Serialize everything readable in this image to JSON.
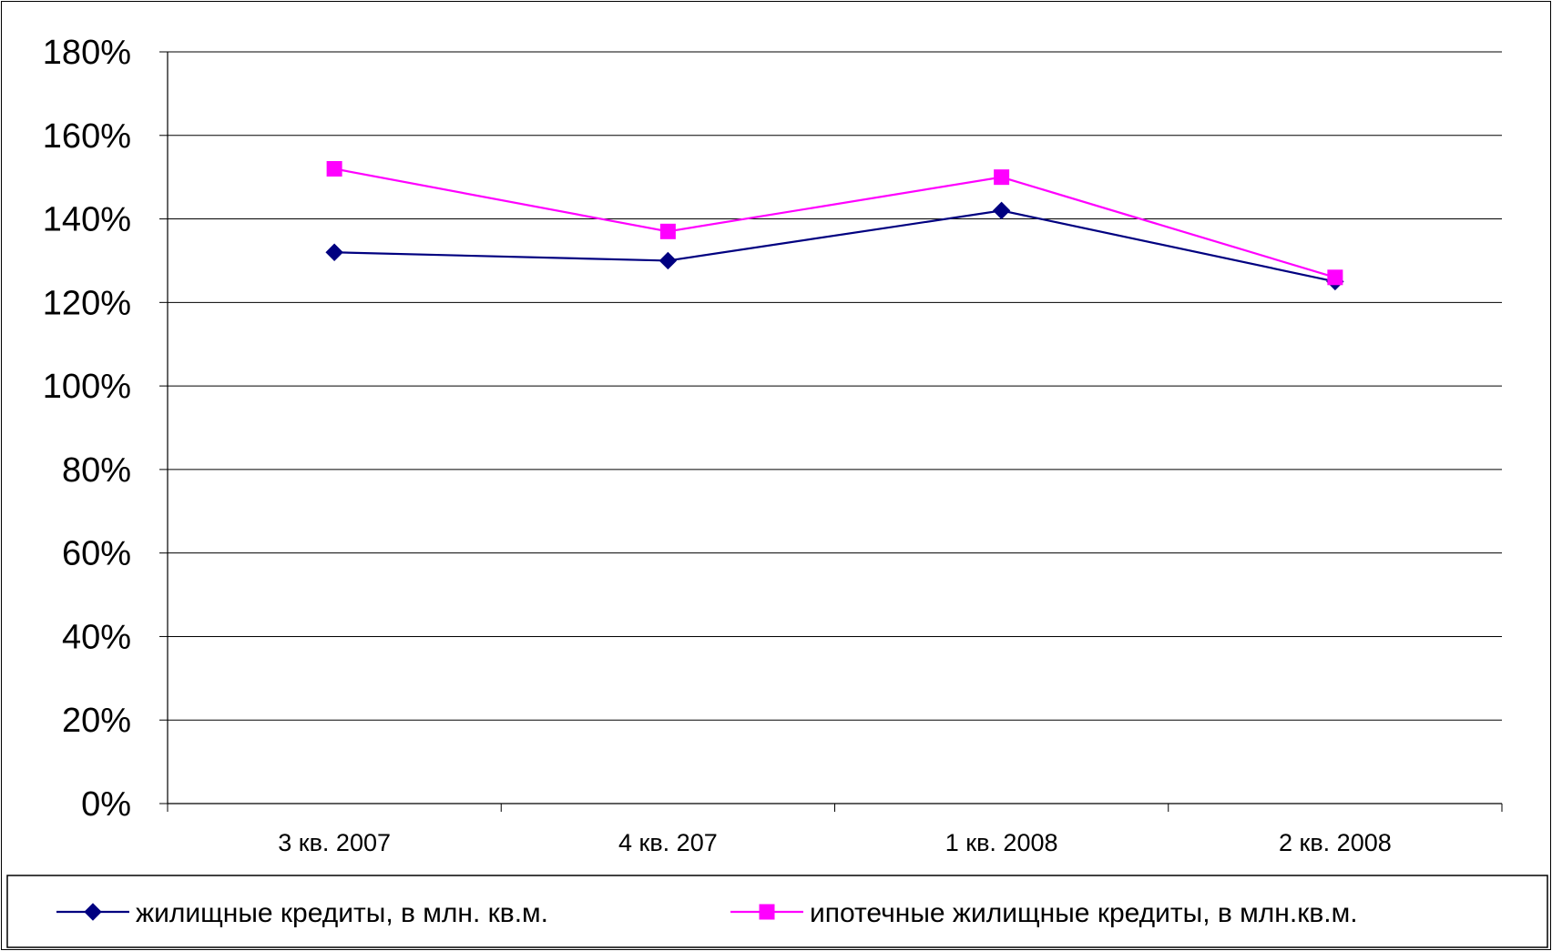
{
  "chart_data": {
    "type": "line",
    "categories": [
      "3 кв. 2007",
      "4 кв. 207",
      "1 кв. 2008",
      "2 кв. 2008"
    ],
    "series": [
      {
        "name": "жилищные кредиты, в млн. кв.м.",
        "values": [
          132,
          130,
          142,
          125
        ],
        "color": "#000080",
        "marker": "diamond"
      },
      {
        "name": "ипотечные жилищные кредиты, в млн.кв.м.",
        "values": [
          152,
          137,
          150,
          126
        ],
        "color": "#FF00FF",
        "marker": "square"
      }
    ],
    "y_ticks": [
      "0%",
      "20%",
      "40%",
      "60%",
      "80%",
      "100%",
      "120%",
      "140%",
      "160%",
      "180%"
    ],
    "ylim": [
      0,
      180
    ],
    "y_unit": "%",
    "grid": true,
    "legend_position": "bottom"
  }
}
